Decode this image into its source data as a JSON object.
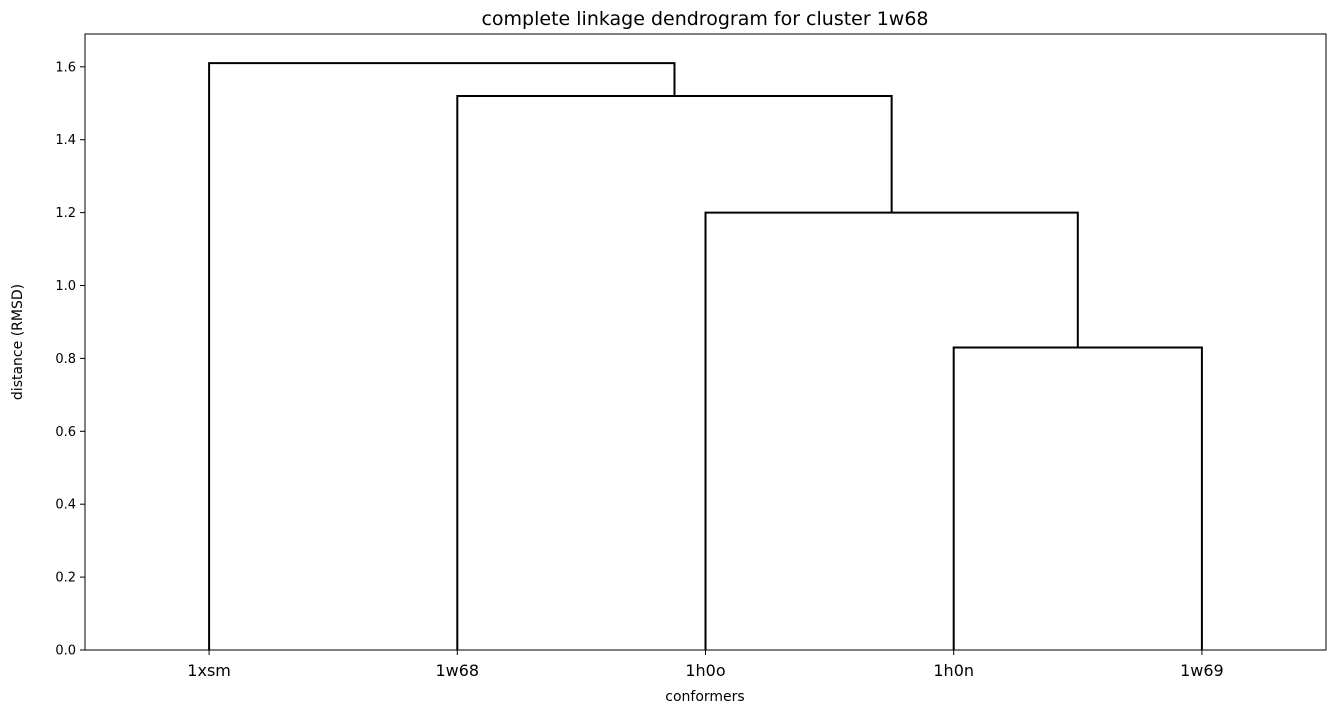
{
  "chart_data": {
    "type": "dendrogram",
    "title": "complete linkage dendrogram for cluster 1w68",
    "xlabel": "conformers",
    "ylabel": "distance (RMSD)",
    "leaves": [
      "1xsm",
      "1w68",
      "1h0o",
      "1h0n",
      "1w69"
    ],
    "merges": [
      {
        "left": "1h0n",
        "right": "1w69",
        "height": 0.83
      },
      {
        "left": "1h0o",
        "right": "cluster(1h0n,1w69)",
        "height": 1.2
      },
      {
        "left": "1w68",
        "right": "cluster(1h0o,1h0n,1w69)",
        "height": 1.52
      },
      {
        "left": "1xsm",
        "right": "cluster(1w68,1h0o,1h0n,1w69)",
        "height": 1.61
      }
    ],
    "ylim": [
      0,
      1.69
    ],
    "yticks": [
      "0.0",
      "0.2",
      "0.4",
      "0.6",
      "0.8",
      "1.0",
      "1.2",
      "1.4",
      "1.6"
    ],
    "grid": false,
    "line_color": "#000000"
  }
}
